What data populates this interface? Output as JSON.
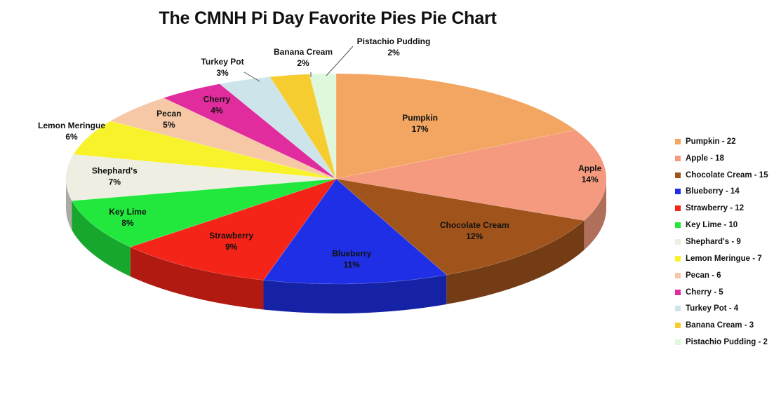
{
  "chart_data": {
    "type": "pie",
    "title": "The CMNH Pi Day Favorite Pies Pie Chart",
    "slices": [
      {
        "name": "Pumpkin",
        "value": 22,
        "percent": "17%",
        "legend": "Pumpkin  - 22",
        "color": "#F2A661"
      },
      {
        "name": "Apple",
        "value": 18,
        "percent": "14%",
        "legend": "Apple - 18",
        "color": "#F59A7E"
      },
      {
        "name": "Chocolate Cream",
        "value": 15,
        "percent": "12%",
        "legend": "Chocolate Cream - 15",
        "color": "#A0541C"
      },
      {
        "name": "Blueberry",
        "value": 14,
        "percent": "11%",
        "legend": "Blueberry - 14",
        "color": "#1F2FE6"
      },
      {
        "name": "Strawberry",
        "value": 12,
        "percent": "9%",
        "legend": "Strawberry - 12",
        "color": "#F42418"
      },
      {
        "name": "Key Lime",
        "value": 10,
        "percent": "8%",
        "legend": "Key Lime - 10",
        "color": "#22E83E"
      },
      {
        "name": "Shephard's",
        "value": 9,
        "percent": "7%",
        "legend": "Shephard's - 9",
        "color": "#EEEEE2"
      },
      {
        "name": "Lemon Meringue",
        "value": 7,
        "percent": "6%",
        "legend": "Lemon Meringue - 7",
        "color": "#F8F22A"
      },
      {
        "name": "Pecan",
        "value": 6,
        "percent": "5%",
        "legend": "Pecan - 6",
        "color": "#F6C8A6"
      },
      {
        "name": "Cherry",
        "value": 5,
        "percent": "4%",
        "legend": "Cherry - 5",
        "color": "#E02C9C"
      },
      {
        "name": "Turkey Pot",
        "value": 4,
        "percent": "3%",
        "legend": "Turkey Pot - 4",
        "color": "#CDE4EA"
      },
      {
        "name": "Banana Cream",
        "value": 3,
        "percent": "2%",
        "legend": "Banana Cream - 3",
        "color": "#F6CD30"
      },
      {
        "name": "Pistachio Pudding",
        "value": 2,
        "percent": "2%",
        "legend": "Pistachio Pudding - 2",
        "color": "#DFF8DC"
      }
    ],
    "style": "3d-tilted",
    "legend_position": "right"
  }
}
